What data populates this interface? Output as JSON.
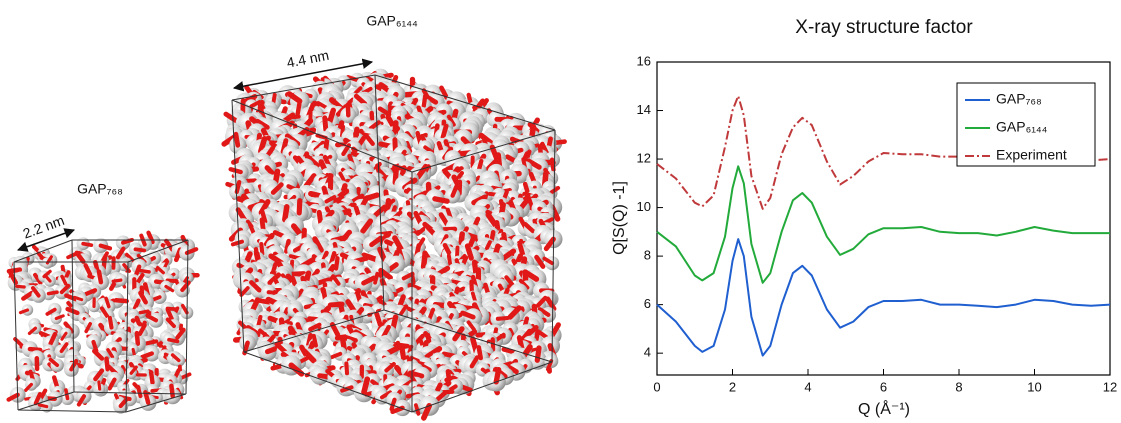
{
  "figure": {
    "small_box": {
      "label": "GAP₇₆₈",
      "size": "2.2 nm"
    },
    "large_box": {
      "label": "GAP₆₁₄₄",
      "size": "4.4 nm"
    }
  },
  "chart_data": {
    "type": "line",
    "title": "X-ray structure factor",
    "x_label": "Q (Å⁻¹)",
    "y_label": "Q[S(Q) -1]",
    "x": [
      0,
      0.5,
      1.0,
      1.2,
      1.5,
      1.8,
      2.0,
      2.15,
      2.3,
      2.5,
      2.8,
      3.0,
      3.3,
      3.6,
      3.85,
      4.1,
      4.5,
      4.85,
      5.2,
      5.6,
      6.0,
      6.5,
      7.0,
      7.5,
      8.0,
      8.5,
      9.0,
      9.5,
      10.0,
      10.5,
      11.0,
      11.5,
      12.0
    ],
    "series": [
      {
        "name": "GAP₇₆₈",
        "color": "#1f5fd0",
        "linestyle": "solid",
        "values": [
          6.0,
          5.3,
          4.3,
          4.05,
          4.3,
          5.8,
          7.8,
          8.7,
          8.0,
          5.5,
          3.9,
          4.3,
          6.0,
          7.3,
          7.6,
          7.2,
          5.8,
          5.05,
          5.3,
          5.9,
          6.15,
          6.15,
          6.2,
          6.0,
          6.0,
          5.95,
          5.9,
          6.0,
          6.2,
          6.15,
          6.0,
          5.95,
          6.0
        ]
      },
      {
        "name": "GAP₆₁₄₄",
        "color": "#22aa3a",
        "linestyle": "solid",
        "values": [
          9.0,
          8.4,
          7.2,
          7.0,
          7.3,
          8.8,
          10.8,
          11.7,
          11.0,
          8.5,
          6.9,
          7.3,
          9.0,
          10.3,
          10.6,
          10.2,
          8.8,
          8.05,
          8.3,
          8.9,
          9.15,
          9.15,
          9.2,
          9.0,
          8.95,
          8.95,
          8.85,
          9.0,
          9.2,
          9.05,
          8.95,
          8.95,
          8.95
        ]
      },
      {
        "name": "Experiment",
        "color": "#c0393b",
        "linestyle": "dashdot",
        "values": [
          11.8,
          11.2,
          10.2,
          10.05,
          10.5,
          12.5,
          14.0,
          14.6,
          13.8,
          11.3,
          9.95,
          10.4,
          12.2,
          13.3,
          13.7,
          13.4,
          11.9,
          10.95,
          11.3,
          11.9,
          12.25,
          12.2,
          12.2,
          12.1,
          12.1,
          12.0,
          11.85,
          12.1,
          12.3,
          12.2,
          12.05,
          11.95,
          12.0
        ]
      }
    ],
    "xlim": [
      0,
      12
    ],
    "xticks": [
      0,
      2,
      4,
      6,
      8,
      10,
      12
    ],
    "ylim": [
      3.1,
      16
    ],
    "yticks": [
      4,
      6,
      8,
      10,
      12,
      14,
      16
    ],
    "legend": "upper right",
    "grid": false
  }
}
